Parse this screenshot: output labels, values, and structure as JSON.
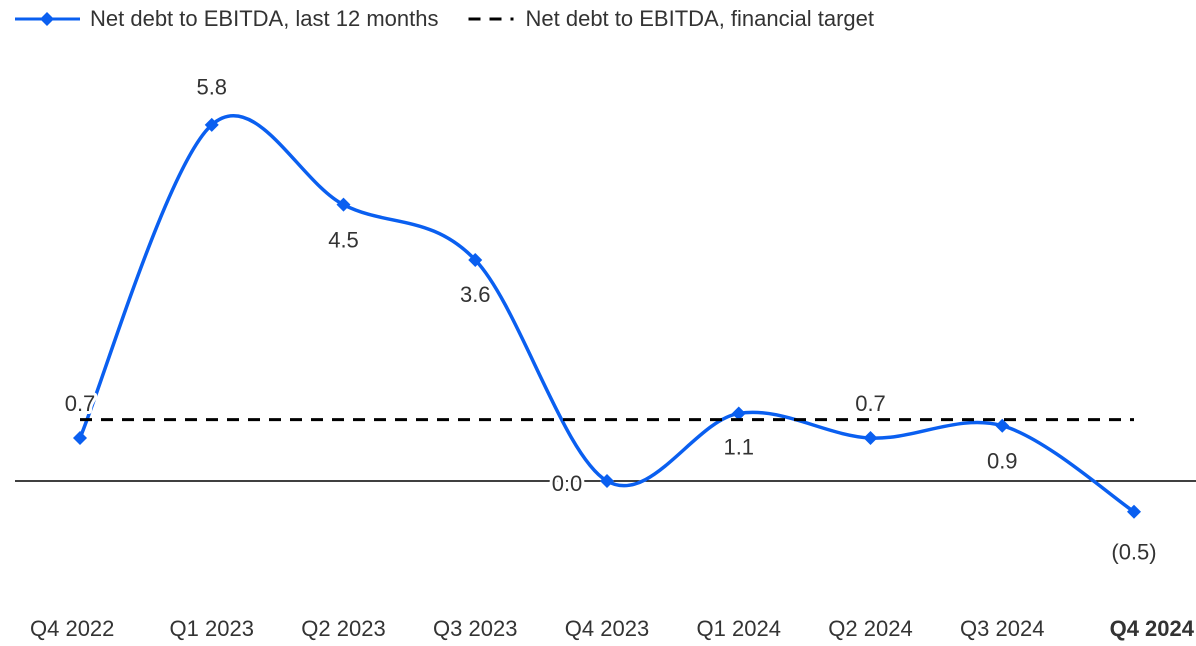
{
  "chart_data": {
    "type": "line",
    "categories": [
      "Q4 2022",
      "Q1 2023",
      "Q2 2023",
      "Q3 2023",
      "Q4 2023",
      "Q1 2024",
      "Q2 2024",
      "Q3 2024",
      "Q4 2024"
    ],
    "series": [
      {
        "name": "Net debt to EBITDA, last 12 months",
        "color": "#0a5ff0",
        "values": [
          0.7,
          5.8,
          4.5,
          3.6,
          0.0,
          1.1,
          0.7,
          0.9,
          -0.5
        ],
        "value_labels": [
          "0.7",
          "5.8",
          "4.5",
          "3.6",
          "0.0",
          "1.1",
          "0.7",
          "0.9",
          "(0.5)"
        ]
      },
      {
        "name": "Net debt to EBITDA, financial target",
        "color": "#000000",
        "dashed": true,
        "values": [
          1.0,
          1.0,
          1.0,
          1.0,
          1.0,
          1.0,
          1.0,
          1.0,
          1.0
        ]
      }
    ],
    "ylim": [
      -1,
      6.2
    ],
    "zero_line": true,
    "legend": "top-left"
  }
}
